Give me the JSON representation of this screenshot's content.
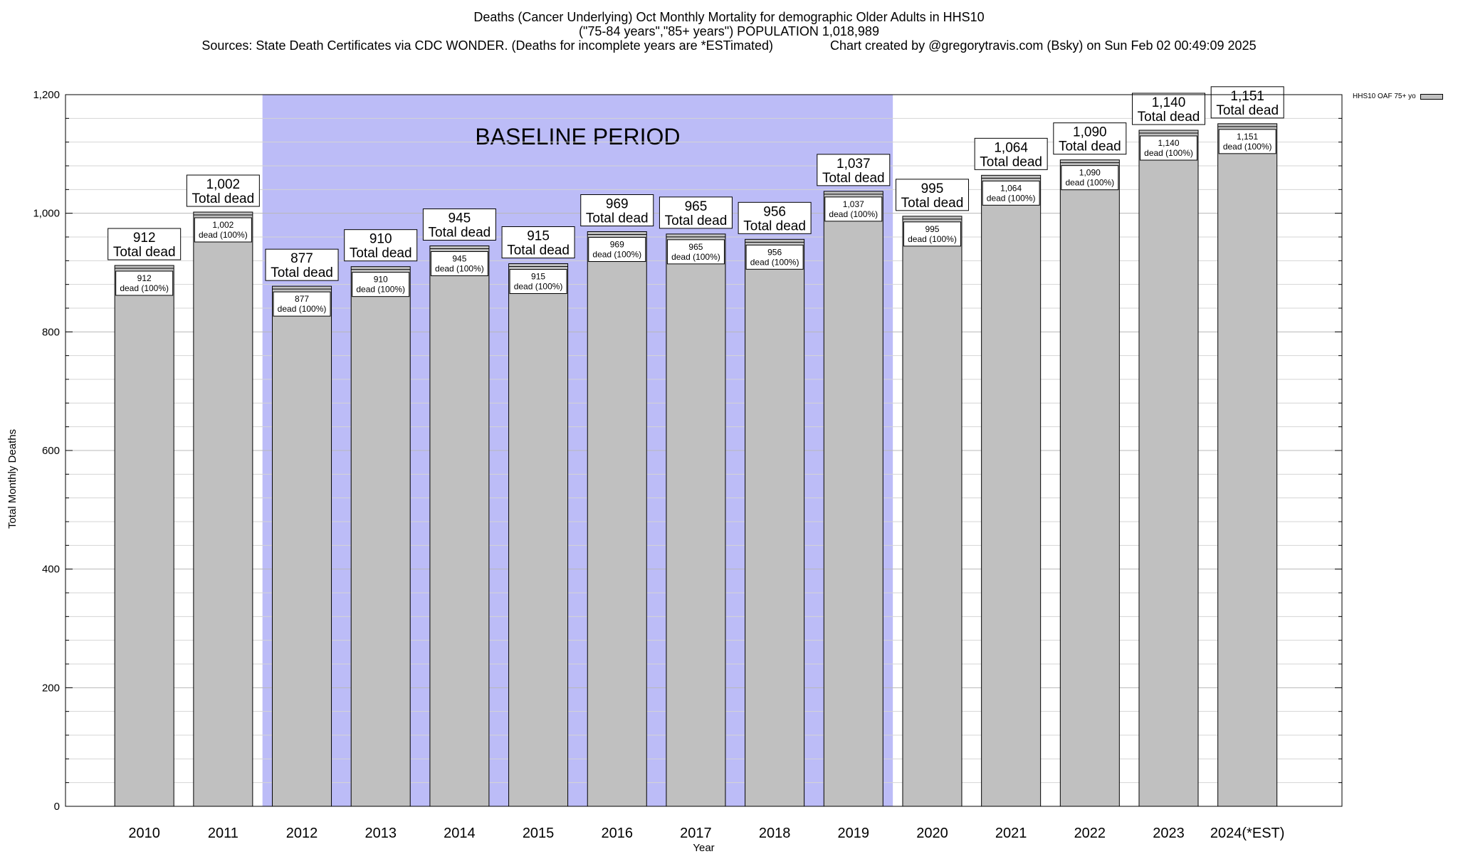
{
  "title_lines": [
    "Deaths (Cancer Underlying) Oct Monthly Mortality for demographic Older Adults in HHS10",
    "(\"75-84 years\",\"85+ years\") POPULATION 1,018,989",
    "Sources: State Death Certificates via CDC WONDER. (Deaths for incomplete years are *ESTimated)                Chart created by @gregorytravis.com (Bsky) on Sun Feb 02 00:49:09 2025"
  ],
  "chart_data": {
    "type": "bar",
    "categories": [
      "2010",
      "2011",
      "2012",
      "2013",
      "2014",
      "2015",
      "2016",
      "2017",
      "2018",
      "2019",
      "2020",
      "2021",
      "2022",
      "2023",
      "2024(*EST)"
    ],
    "series": [
      {
        "name": "HHS10 OAF 75+ yo",
        "values": [
          912,
          1002,
          877,
          910,
          945,
          915,
          969,
          965,
          956,
          1037,
          995,
          1064,
          1090,
          1140,
          1151
        ],
        "color": "#c0c0c0"
      }
    ],
    "value_labels": [
      "912",
      "1,002",
      "877",
      "910",
      "945",
      "915",
      "969",
      "965",
      "956",
      "1,037",
      "995",
      "1,064",
      "1,090",
      "1,140",
      "1,151"
    ],
    "top_label_suffix": "Total dead",
    "inner_label_suffix": "dead (100%)",
    "xlabel": "Year",
    "ylabel": "Total Monthly Deaths",
    "ylim": [
      0,
      1200
    ],
    "yticks": [
      0,
      200,
      400,
      600,
      800,
      1000,
      1200
    ],
    "ytick_labels": [
      "0",
      "200",
      "400",
      "600",
      "800",
      "1,000",
      "1,200"
    ],
    "minor_tick_step": 40,
    "grid": true,
    "legend_position": "top-right",
    "baseline": {
      "label": "BASELINE PERIOD",
      "from_category": "2012",
      "to_category": "2019",
      "color": "#bcbcf7"
    }
  }
}
